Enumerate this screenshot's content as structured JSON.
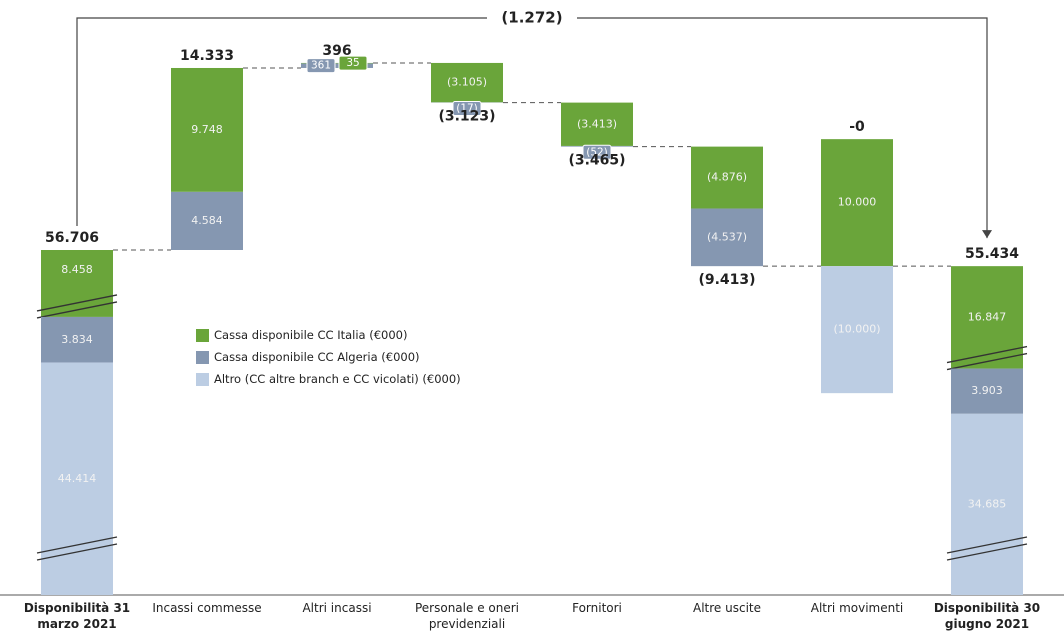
{
  "chart_data": {
    "type": "waterfall",
    "categories": [
      "Disponibilità 31 marzo 2021",
      "Incassi commesse",
      "Altri incassi",
      "Personale e oneri previdenziali",
      "Fornitori",
      "Altre uscite",
      "Altri movimenti",
      "Disponibilità 30 giugno 2021"
    ],
    "series": [
      {
        "name": "Cassa disponibile CC Italia (€000)",
        "color": "#6aa53a",
        "values": [
          8458,
          9748,
          35,
          -3105,
          -3413,
          -4876,
          10000,
          16847
        ],
        "value_labels": [
          "8.458",
          "9.748",
          "35",
          "(3.105)",
          "(3.413)",
          "(4.876)",
          "10.000",
          "16.847"
        ]
      },
      {
        "name": "Cassa disponibile CC Algeria (€000)",
        "color": "#8597b1",
        "values": [
          3834,
          4584,
          361,
          -17,
          -52,
          -4537,
          null,
          3903
        ],
        "value_labels": [
          "3.834",
          "4.584",
          "361",
          "(17)",
          "(52)",
          "(4.537)",
          null,
          "3.903"
        ]
      },
      {
        "name": "Altro (CC altre branch e CC vicolati) (€000)",
        "color": "#bccde3",
        "values": [
          44414,
          null,
          null,
          null,
          null,
          null,
          -10000,
          34685
        ],
        "value_labels": [
          "44.414",
          null,
          null,
          null,
          null,
          null,
          "(10.000)",
          "34.685"
        ]
      }
    ],
    "totals": {
      "values": [
        56706,
        14333,
        396,
        -3123,
        -3465,
        -9413,
        0,
        55434
      ],
      "value_labels": [
        "56.706",
        "14.333",
        "396",
        "(3.123)",
        "(3.465)",
        "(9.413)",
        "-0",
        "55.434"
      ]
    },
    "annotation": {
      "value": -1272,
      "label": "(1.272)"
    }
  }
}
